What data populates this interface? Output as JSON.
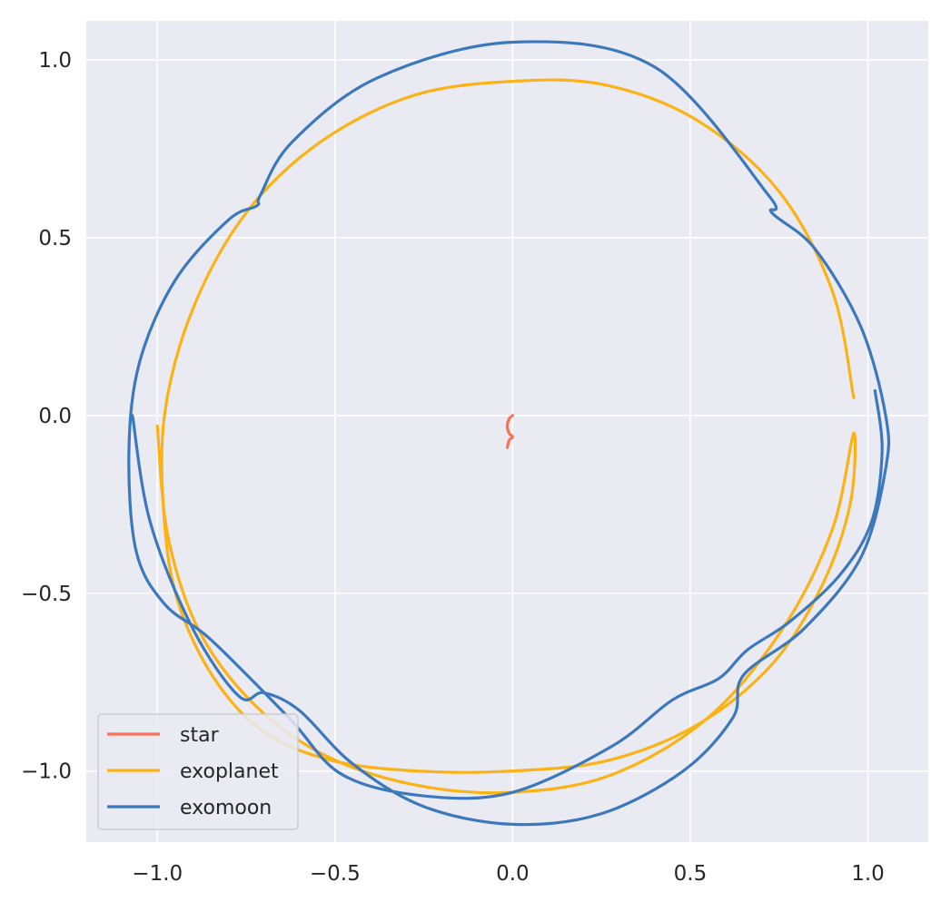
{
  "chart_data": {
    "type": "line",
    "title": "",
    "xlabel": "",
    "ylabel": "",
    "xlim": [
      -1.2,
      1.17
    ],
    "ylim": [
      -1.2,
      1.11
    ],
    "xticks": [
      -1.0,
      -0.5,
      0.0,
      0.5,
      1.0
    ],
    "yticks": [
      -1.0,
      -0.5,
      0.0,
      0.5,
      1.0
    ],
    "xtick_labels": [
      "−1.0",
      "−0.5",
      "0.0",
      "0.5",
      "1.0"
    ],
    "ytick_labels": [
      "−1.0",
      "−0.5",
      "0.0",
      "0.5",
      "1.0"
    ],
    "grid": true,
    "legend_position": "lower-left",
    "series": [
      {
        "name": "star",
        "color": "#fa7256",
        "x": [
          0.0,
          -0.01,
          -0.015,
          -0.01,
          0.0,
          -0.01,
          -0.015
        ],
        "y": [
          0.0,
          -0.01,
          -0.03,
          -0.05,
          -0.06,
          -0.07,
          -0.09
        ]
      },
      {
        "name": "exoplanet",
        "color": "#fcb214",
        "x": [
          0.96,
          0.9,
          0.75,
          0.52,
          0.26,
          0.0,
          -0.28,
          -0.54,
          -0.75,
          -0.9,
          -0.98,
          -0.98,
          -0.94,
          -0.84,
          -0.7,
          -0.51,
          -0.27,
          0.0,
          0.27,
          0.52,
          0.73,
          0.87,
          0.95,
          0.96,
          0.9,
          0.76,
          0.55,
          0.28,
          0.0,
          -0.27,
          -0.52,
          -0.72,
          -0.88,
          -0.97,
          -1.0
        ],
        "y": [
          0.05,
          0.35,
          0.63,
          0.83,
          0.93,
          0.94,
          0.9,
          0.77,
          0.57,
          0.3,
          0.0,
          -0.3,
          -0.53,
          -0.74,
          -0.89,
          -0.97,
          -1.0,
          -1.0,
          -0.97,
          -0.87,
          -0.7,
          -0.48,
          -0.25,
          -0.05,
          -0.32,
          -0.6,
          -0.85,
          -1.01,
          -1.06,
          -1.04,
          -0.96,
          -0.82,
          -0.61,
          -0.34,
          -0.03
        ]
      },
      {
        "name": "exomoon",
        "color": "#3b78bd",
        "x": [
          1.02,
          1.04,
          1.01,
          0.92,
          0.78,
          0.66,
          0.58,
          0.45,
          0.28,
          0.0,
          -0.25,
          -0.48,
          -0.63,
          -0.85,
          -0.98,
          -1.06,
          -1.08,
          -1.05,
          -0.95,
          -0.8,
          -0.72,
          -0.71,
          -0.62,
          -0.38,
          0.0,
          0.4,
          0.72,
          0.73,
          0.85,
          0.98,
          1.05,
          1.05,
          0.98,
          0.82,
          0.65,
          0.62,
          0.48,
          0.25,
          0.0,
          -0.25,
          -0.45,
          -0.6,
          -0.7,
          -0.77,
          -0.9,
          -1.02,
          -1.07
        ],
        "y": [
          0.07,
          -0.1,
          -0.3,
          -0.45,
          -0.58,
          -0.66,
          -0.74,
          -0.8,
          -0.93,
          -1.06,
          -1.07,
          -1.01,
          -0.85,
          -0.63,
          -0.53,
          -0.38,
          -0.1,
          0.15,
          0.38,
          0.55,
          0.59,
          0.62,
          0.77,
          0.95,
          1.05,
          0.98,
          0.62,
          0.57,
          0.47,
          0.25,
          0.0,
          -0.15,
          -0.4,
          -0.6,
          -0.73,
          -0.85,
          -1.0,
          -1.12,
          -1.15,
          -1.1,
          -0.98,
          -0.83,
          -0.78,
          -0.79,
          -0.6,
          -0.3,
          0.0
        ]
      }
    ]
  }
}
